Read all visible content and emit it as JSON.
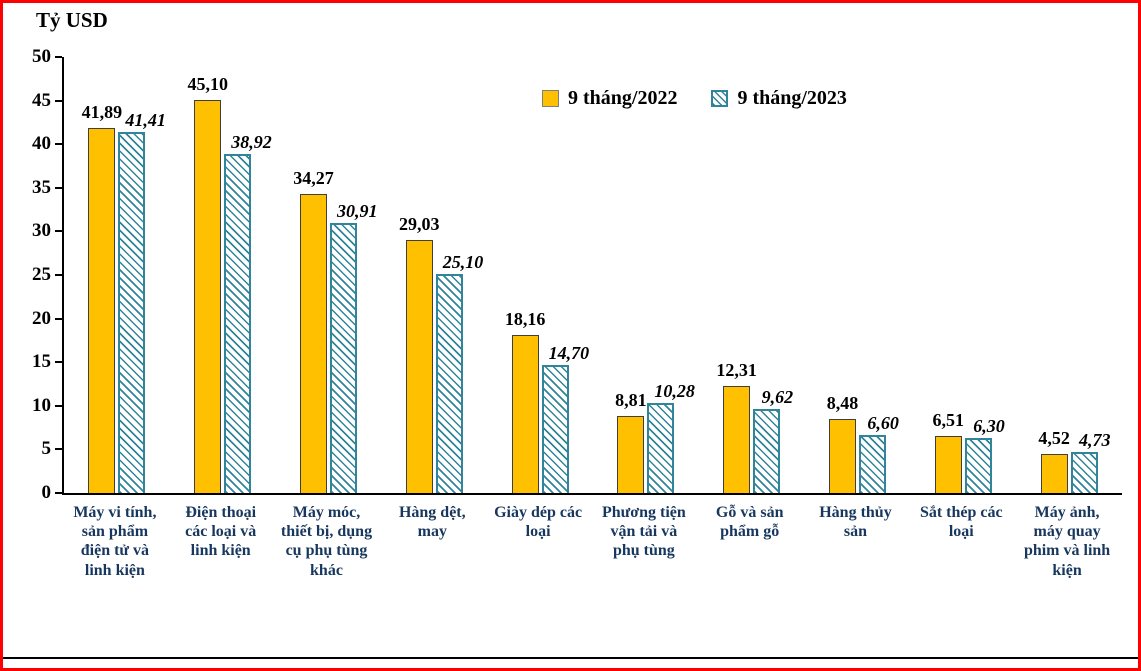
{
  "colors": {
    "frame_border": "#FF0000",
    "bar_2022": "#FFC000",
    "bar_2023_hatch": "#31859B",
    "category_label_text": "#17375E",
    "axis_text": "#000000"
  },
  "chart_data": {
    "type": "bar",
    "title": "",
    "ylabel": "Tỷ USD",
    "xlabel": "",
    "ylim": [
      0,
      50
    ],
    "ytick_step": 5,
    "grid": false,
    "legend_position": "top-center",
    "categories": [
      "Máy vi tính, sản phẩm điện tử và linh kiện",
      "Điện thoại các loại và linh kiện",
      "Máy móc, thiết bị, dụng cụ phụ tùng khác",
      "Hàng dệt, may",
      "Giày dép các loại",
      "Phương tiện vận tải và phụ tùng",
      "Gỗ và sản phẩm gỗ",
      "Hàng thủy sản",
      "Sắt thép các loại",
      "Máy ảnh, máy quay phim và linh kiện"
    ],
    "series": [
      {
        "name": "9 tháng/2022",
        "values": [
          41.89,
          45.1,
          34.27,
          29.03,
          18.16,
          8.81,
          12.31,
          8.48,
          6.51,
          4.52
        ],
        "value_labels": [
          "41,89",
          "45,10",
          "34,27",
          "29,03",
          "18,16",
          "8,81",
          "12,31",
          "8,48",
          "6,51",
          "4,52"
        ]
      },
      {
        "name": "9 tháng/2023",
        "values": [
          41.41,
          38.92,
          30.91,
          25.1,
          14.7,
          10.28,
          9.62,
          6.6,
          6.3,
          4.73
        ],
        "value_labels": [
          "41,41",
          "38,92",
          "30,91",
          "25,10",
          "14,70",
          "10,28",
          "9,62",
          "6,60",
          "6,30",
          "4,73"
        ]
      }
    ]
  }
}
